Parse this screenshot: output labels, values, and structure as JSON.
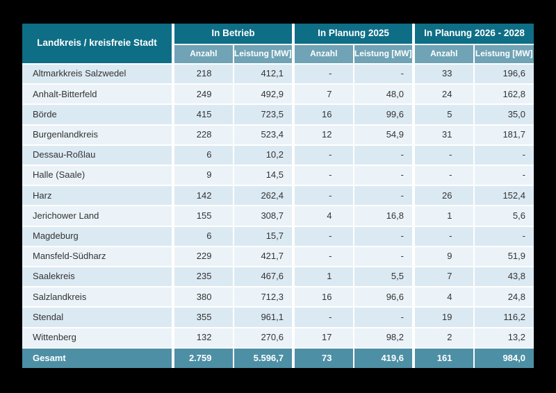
{
  "canvas": {
    "background": "#000000"
  },
  "colors": {
    "header_bg": "#0e6e86",
    "subheader_bg": "#6fa3b5",
    "total_row_bg": "#4d8fa5",
    "row_odd_bg": "#dbe9f2",
    "row_even_bg": "#ebf3f8",
    "grid_line": "#ffffff",
    "body_text": "#333333",
    "header_text": "#ffffff"
  },
  "table": {
    "corner_header": "Landkreis / kreisfreie Stadt",
    "groups": [
      {
        "label": "In Betrieb"
      },
      {
        "label": "In Planung 2025"
      },
      {
        "label": "In Planung 2026 - 2028"
      }
    ],
    "subheaders": {
      "anzahl": "Anzahl",
      "leistung": "Leistung [MW]"
    },
    "rows": [
      {
        "name": "Altmarkkreis Salzwedel",
        "values": [
          "218",
          "412,1",
          "-",
          "-",
          "33",
          "196,6"
        ]
      },
      {
        "name": "Anhalt-Bitterfeld",
        "values": [
          "249",
          "492,9",
          "7",
          "48,0",
          "24",
          "162,8"
        ]
      },
      {
        "name": "Börde",
        "values": [
          "415",
          "723,5",
          "16",
          "99,6",
          "5",
          "35,0"
        ]
      },
      {
        "name": "Burgenlandkreis",
        "values": [
          "228",
          "523,4",
          "12",
          "54,9",
          "31",
          "181,7"
        ]
      },
      {
        "name": "Dessau-Roßlau",
        "values": [
          "6",
          "10,2",
          "-",
          "-",
          "-",
          "-"
        ]
      },
      {
        "name": "Halle (Saale)",
        "values": [
          "9",
          "14,5",
          "-",
          "-",
          "-",
          "-"
        ]
      },
      {
        "name": "Harz",
        "values": [
          "142",
          "262,4",
          "-",
          "-",
          "26",
          "152,4"
        ]
      },
      {
        "name": "Jerichower Land",
        "values": [
          "155",
          "308,7",
          "4",
          "16,8",
          "1",
          "5,6"
        ]
      },
      {
        "name": "Magdeburg",
        "values": [
          "6",
          "15,7",
          "-",
          "-",
          "-",
          "-"
        ]
      },
      {
        "name": "Mansfeld-Südharz",
        "values": [
          "229",
          "421,7",
          "-",
          "-",
          "9",
          "51,9"
        ]
      },
      {
        "name": "Saalekreis",
        "values": [
          "235",
          "467,6",
          "1",
          "5,5",
          "7",
          "43,8"
        ]
      },
      {
        "name": "Salzlandkreis",
        "values": [
          "380",
          "712,3",
          "16",
          "96,6",
          "4",
          "24,8"
        ]
      },
      {
        "name": "Stendal",
        "values": [
          "355",
          "961,1",
          "-",
          "-",
          "19",
          "116,2"
        ]
      },
      {
        "name": "Wittenberg",
        "values": [
          "132",
          "270,6",
          "17",
          "98,2",
          "2",
          "13,2"
        ]
      }
    ],
    "total": {
      "name": "Gesamt",
      "values": [
        "2.759",
        "5.596,7",
        "73",
        "419,6",
        "161",
        "984,0"
      ]
    }
  },
  "chart_data": {
    "type": "table",
    "title": "",
    "columns": [
      "Landkreis / kreisfreie Stadt",
      "In Betrieb - Anzahl",
      "In Betrieb - Leistung [MW]",
      "In Planung 2025 - Anzahl",
      "In Planung 2025 - Leistung [MW]",
      "In Planung 2026 - 2028 - Anzahl",
      "In Planung 2026 - 2028 - Leistung [MW]"
    ],
    "rows": [
      [
        "Altmarkkreis Salzwedel",
        218,
        412.1,
        null,
        null,
        33,
        196.6
      ],
      [
        "Anhalt-Bitterfeld",
        249,
        492.9,
        7,
        48.0,
        24,
        162.8
      ],
      [
        "Börde",
        415,
        723.5,
        16,
        99.6,
        5,
        35.0
      ],
      [
        "Burgenlandkreis",
        228,
        523.4,
        12,
        54.9,
        31,
        181.7
      ],
      [
        "Dessau-Roßlau",
        6,
        10.2,
        null,
        null,
        null,
        null
      ],
      [
        "Halle (Saale)",
        9,
        14.5,
        null,
        null,
        null,
        null
      ],
      [
        "Harz",
        142,
        262.4,
        null,
        null,
        26,
        152.4
      ],
      [
        "Jerichower Land",
        155,
        308.7,
        4,
        16.8,
        1,
        5.6
      ],
      [
        "Magdeburg",
        6,
        15.7,
        null,
        null,
        null,
        null
      ],
      [
        "Mansfeld-Südharz",
        229,
        421.7,
        null,
        null,
        9,
        51.9
      ],
      [
        "Saalekreis",
        235,
        467.6,
        1,
        5.5,
        7,
        43.8
      ],
      [
        "Salzlandkreis",
        380,
        712.3,
        16,
        96.6,
        4,
        24.8
      ],
      [
        "Stendal",
        355,
        961.1,
        null,
        null,
        19,
        116.2
      ],
      [
        "Wittenberg",
        132,
        270.6,
        17,
        98.2,
        2,
        13.2
      ]
    ],
    "total_row": [
      "Gesamt",
      2759,
      5596.7,
      73,
      419.6,
      161,
      984.0
    ],
    "missing_value_marker": "-"
  }
}
